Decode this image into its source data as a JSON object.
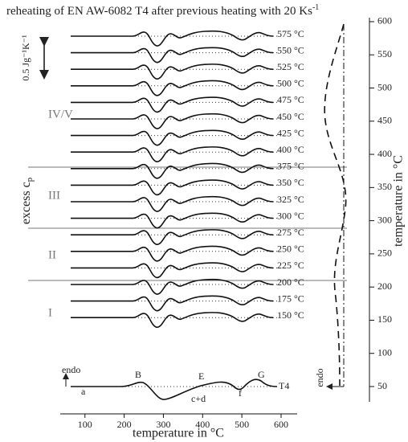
{
  "chart_data": {
    "type": "line",
    "title": "reheating of EN AW-6082 T4 after previous heating with 20 Ks",
    "title_superscript": "-1",
    "xlabel": "temperature in °C",
    "xlim": [
      37,
      641
    ],
    "xticks": [
      100,
      200,
      300,
      400,
      500,
      600
    ],
    "ylabel": "excess c",
    "ylabel_subscript": "p",
    "scale_bar": "0.5 Jg⁻¹K⁻¹",
    "y2label": "temperature in °C",
    "y2lim": [
      27,
      606
    ],
    "y2ticks": [
      50,
      100,
      150,
      200,
      250,
      300,
      350,
      400,
      450,
      500,
      550,
      600
    ],
    "curve_labels": [
      "575 °C",
      "550 °C",
      "525 °C",
      "500 °C",
      "475 °C",
      "450 °C",
      "425 °C",
      "400 °C",
      "375 °C",
      "350 °C",
      "325 °C",
      "300 °C",
      "275 °C",
      "250 °C",
      "225 °C",
      "200 °C",
      "175 °C",
      "150 °C"
    ],
    "regions": [
      "IV/V",
      "III",
      "II",
      "I"
    ],
    "reference_label": "T4",
    "endo_label": "endo",
    "peak_labels": [
      "a",
      "B",
      "c+d",
      "E",
      "f",
      "G"
    ]
  }
}
